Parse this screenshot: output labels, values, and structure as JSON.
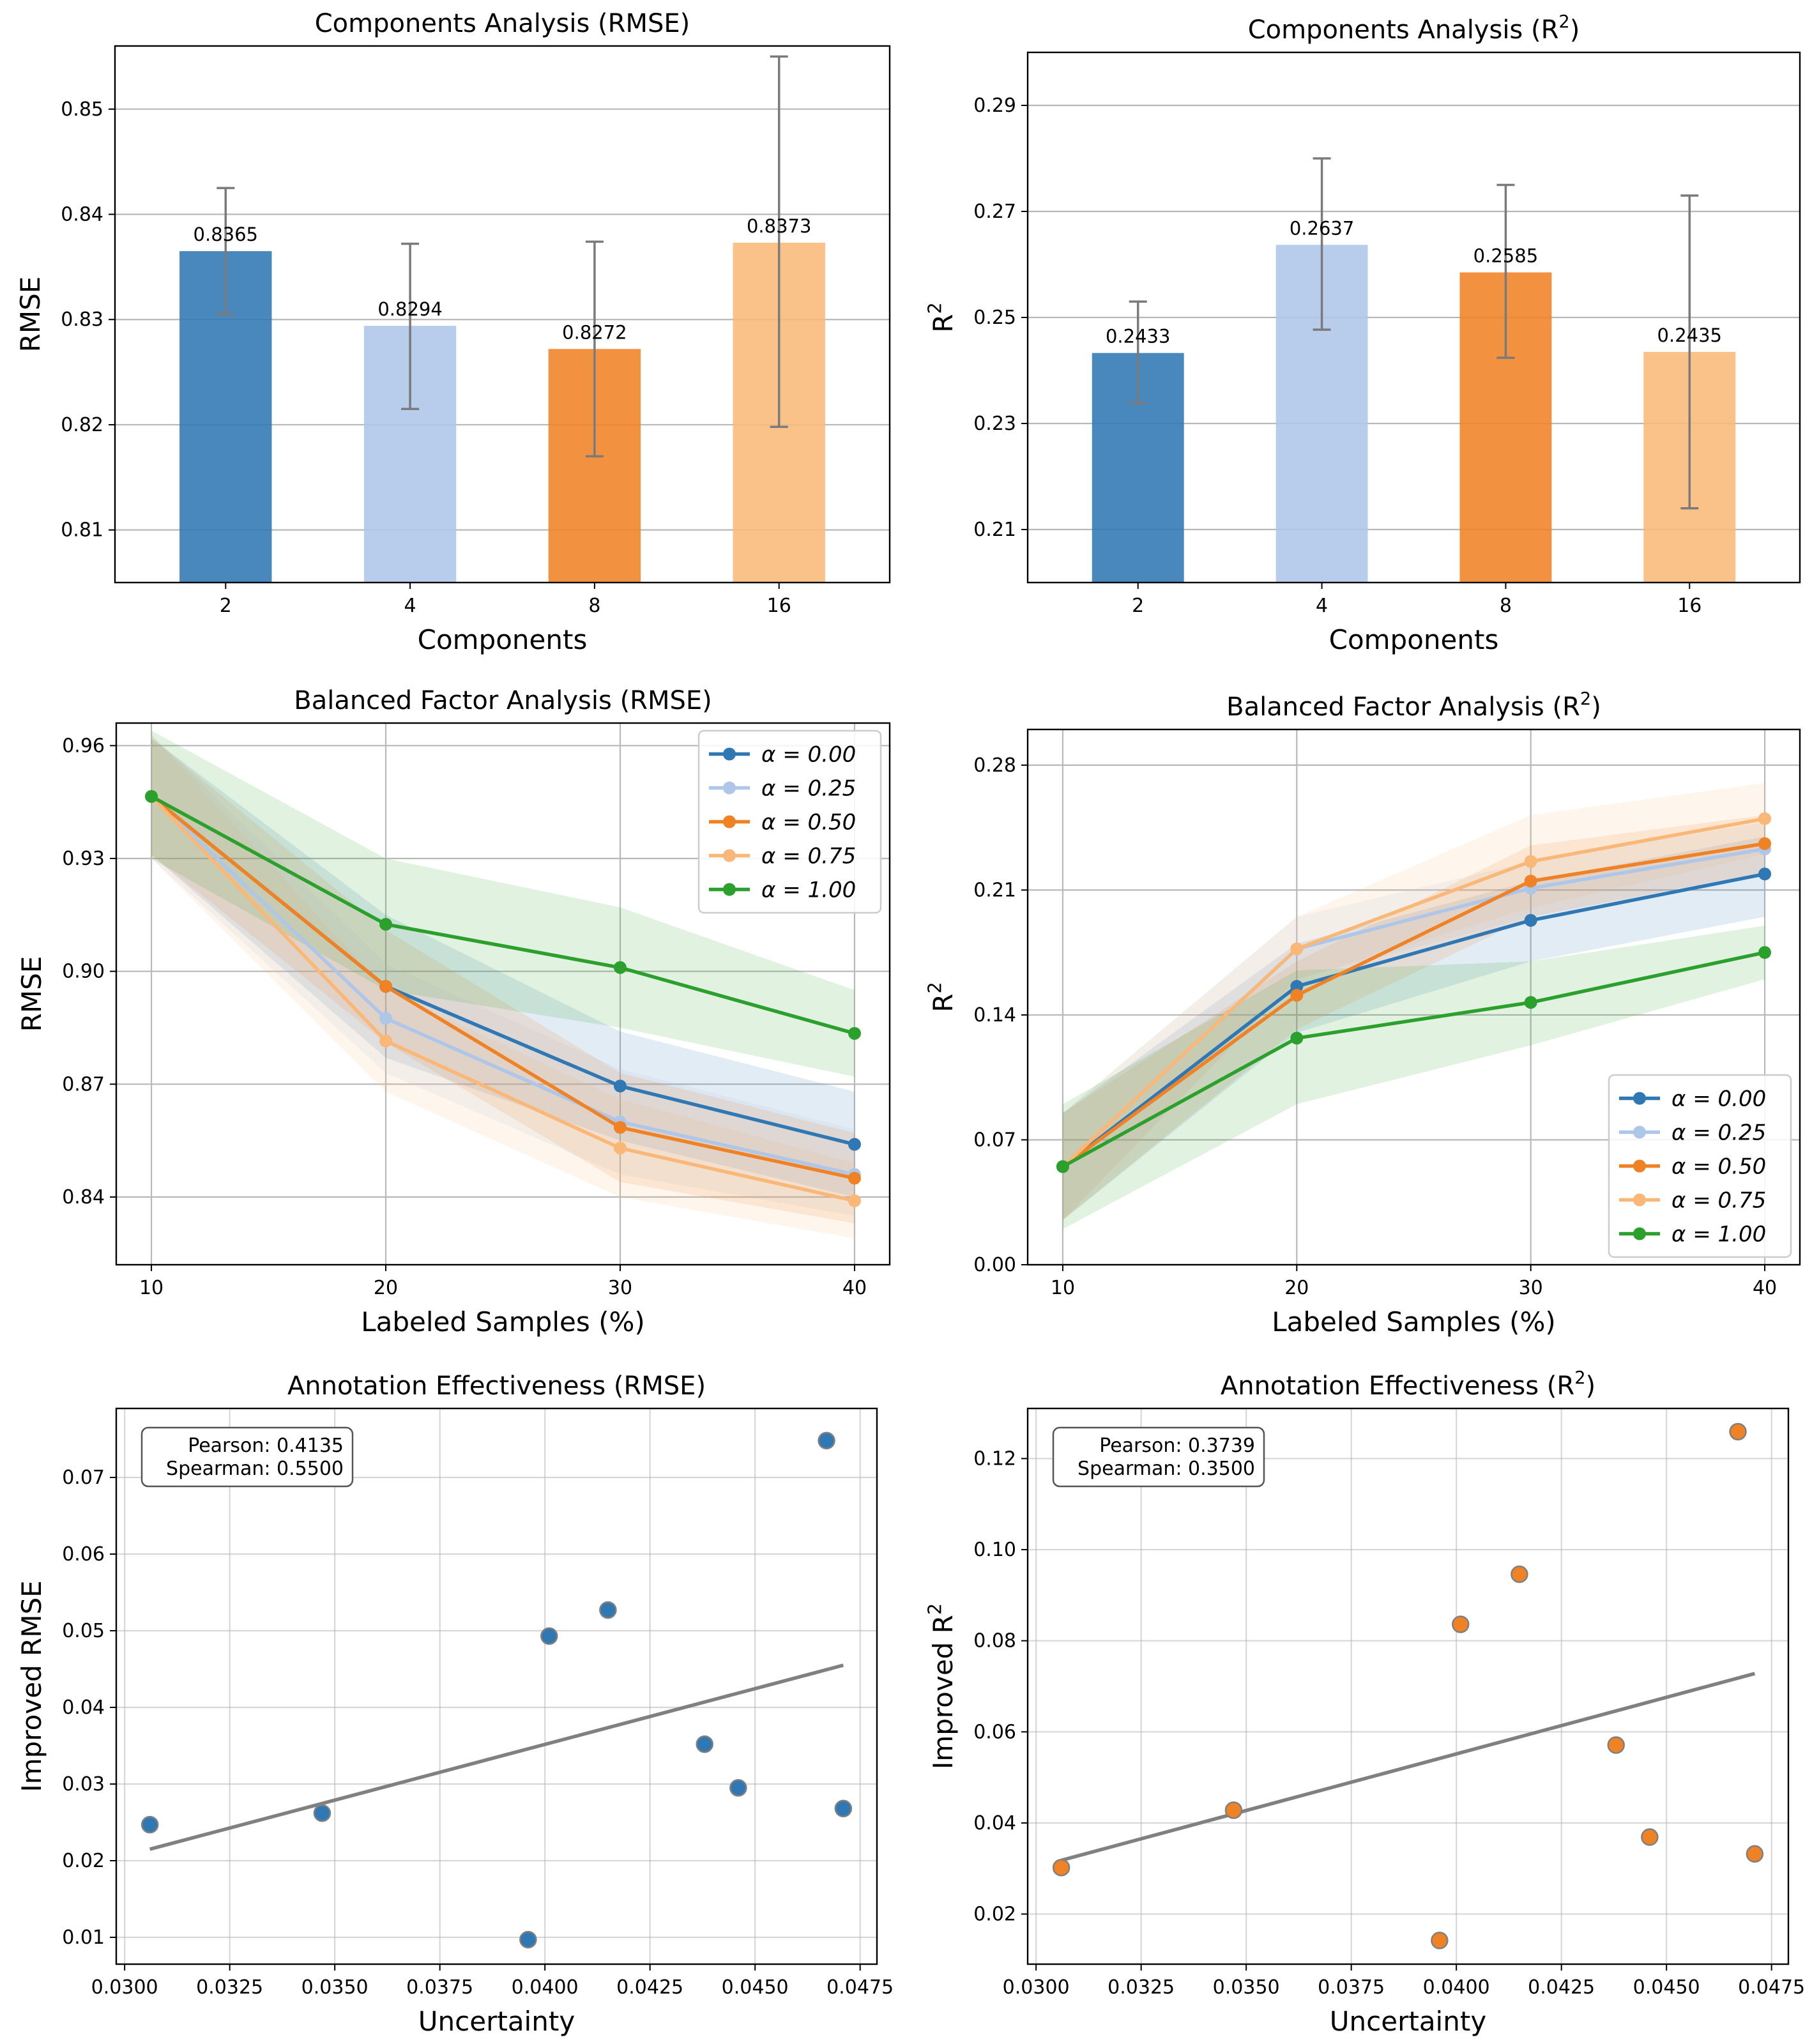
{
  "colors": {
    "blue": "#2f78b4",
    "light_blue": "#aec6e8",
    "orange": "#f08226",
    "light_orange": "#f9b878",
    "green": "#2ca02c",
    "error_bar": "#7a7a7a",
    "trend_line": "#808080",
    "grid": "#b8b8b8"
  },
  "chart_data": [
    {
      "id": "components-rmse",
      "type": "bar",
      "title": "Components Analysis (RMSE)",
      "xlabel": "Components",
      "ylabel": "RMSE",
      "categories": [
        "2",
        "4",
        "8",
        "16"
      ],
      "values": [
        0.8365,
        0.8294,
        0.8272,
        0.8373
      ],
      "value_labels": [
        "0.8365",
        "0.8294",
        "0.8272",
        "0.8373"
      ],
      "error_low": [
        0.8305,
        0.8215,
        0.817,
        0.8198
      ],
      "error_high": [
        0.8425,
        0.8372,
        0.8374,
        0.855
      ],
      "bar_colors": [
        "blue",
        "light_blue",
        "orange",
        "light_orange"
      ],
      "ylim": [
        0.805,
        0.856
      ],
      "yticks": [
        0.81,
        0.82,
        0.83,
        0.84,
        0.85
      ],
      "ytick_labels": [
        "0.81",
        "0.82",
        "0.83",
        "0.84",
        "0.85"
      ],
      "grid": "y"
    },
    {
      "id": "components-r2",
      "type": "bar",
      "title": "Components Analysis (R²)",
      "xlabel": "Components",
      "ylabel": "R²",
      "categories": [
        "2",
        "4",
        "8",
        "16"
      ],
      "values": [
        0.2433,
        0.2637,
        0.2585,
        0.2435
      ],
      "value_labels": [
        "0.2433",
        "0.2637",
        "0.2585",
        "0.2435"
      ],
      "error_low": [
        0.2338,
        0.2477,
        0.2424,
        0.214
      ],
      "error_high": [
        0.253,
        0.28,
        0.275,
        0.273
      ],
      "bar_colors": [
        "blue",
        "light_blue",
        "orange",
        "light_orange"
      ],
      "ylim": [
        0.2,
        0.3
      ],
      "yticks": [
        0.21,
        0.23,
        0.25,
        0.27,
        0.29
      ],
      "ytick_labels": [
        "0.21",
        "0.23",
        "0.25",
        "0.27",
        "0.29"
      ],
      "grid": "y"
    },
    {
      "id": "balanced-rmse",
      "type": "line",
      "title": "Balanced Factor Analysis (RMSE)",
      "xlabel": "Labeled Samples (%)",
      "ylabel": "RMSE",
      "x": [
        10,
        20,
        30,
        40
      ],
      "xticks": [
        10,
        20,
        30,
        40
      ],
      "xlim": [
        8.5,
        41.5
      ],
      "ylim": [
        0.822,
        0.966
      ],
      "yticks": [
        0.84,
        0.87,
        0.9,
        0.93,
        0.96
      ],
      "ytick_labels": [
        "0.84",
        "0.87",
        "0.90",
        "0.93",
        "0.96"
      ],
      "grid": "both",
      "legend_position": "top-right",
      "series": [
        {
          "name": "α = 0.00",
          "color": "blue",
          "values": [
            0.9465,
            0.896,
            0.8695,
            0.854
          ],
          "lower": [
            0.931,
            0.877,
            0.855,
            0.84
          ],
          "upper": [
            0.962,
            0.915,
            0.884,
            0.868
          ]
        },
        {
          "name": "α = 0.25",
          "color": "light_blue",
          "values": [
            0.9465,
            0.8875,
            0.86,
            0.846
          ],
          "lower": [
            0.93,
            0.873,
            0.846,
            0.835
          ],
          "upper": [
            0.963,
            0.902,
            0.874,
            0.858
          ]
        },
        {
          "name": "α = 0.50",
          "color": "orange",
          "values": [
            0.9465,
            0.896,
            0.8585,
            0.845
          ],
          "lower": [
            0.931,
            0.881,
            0.844,
            0.833
          ],
          "upper": [
            0.962,
            0.911,
            0.873,
            0.857
          ]
        },
        {
          "name": "α = 0.75",
          "color": "light_orange",
          "values": [
            0.9465,
            0.8815,
            0.853,
            0.839
          ],
          "lower": [
            0.93,
            0.868,
            0.84,
            0.829
          ],
          "upper": [
            0.963,
            0.895,
            0.866,
            0.849
          ]
        },
        {
          "name": "α = 1.00",
          "color": "green",
          "values": [
            0.9465,
            0.9125,
            0.901,
            0.8835
          ],
          "lower": [
            0.93,
            0.895,
            0.885,
            0.872
          ],
          "upper": [
            0.964,
            0.93,
            0.917,
            0.895
          ]
        }
      ]
    },
    {
      "id": "balanced-r2",
      "type": "line",
      "title": "Balanced Factor Analysis (R²)",
      "xlabel": "Labeled Samples (%)",
      "ylabel": "R²",
      "x": [
        10,
        20,
        30,
        40
      ],
      "xticks": [
        10,
        20,
        30,
        40
      ],
      "xlim": [
        8.5,
        41.5
      ],
      "ylim": [
        0.0,
        0.3
      ],
      "yticks": [
        0.0,
        0.07,
        0.14,
        0.21,
        0.28
      ],
      "ytick_labels": [
        "0.00",
        "0.07",
        "0.14",
        "0.21",
        "0.28"
      ],
      "grid": "both",
      "legend_position": "bottom-right",
      "series": [
        {
          "name": "α = 0.00",
          "color": "blue",
          "values": [
            0.055,
            0.156,
            0.193,
            0.219
          ],
          "lower": [
            0.025,
            0.13,
            0.17,
            0.195
          ],
          "upper": [
            0.085,
            0.18,
            0.215,
            0.24
          ]
        },
        {
          "name": "α = 0.25",
          "color": "light_blue",
          "values": [
            0.055,
            0.177,
            0.211,
            0.233
          ],
          "lower": [
            0.025,
            0.16,
            0.195,
            0.218
          ],
          "upper": [
            0.085,
            0.195,
            0.226,
            0.248
          ]
        },
        {
          "name": "α = 0.50",
          "color": "orange",
          "values": [
            0.055,
            0.151,
            0.215,
            0.236
          ],
          "lower": [
            0.025,
            0.132,
            0.195,
            0.22
          ],
          "upper": [
            0.085,
            0.17,
            0.235,
            0.252
          ]
        },
        {
          "name": "α = 0.75",
          "color": "light_orange",
          "values": [
            0.055,
            0.177,
            0.226,
            0.25
          ],
          "lower": [
            0.025,
            0.16,
            0.2,
            0.23
          ],
          "upper": [
            0.085,
            0.195,
            0.252,
            0.27
          ]
        },
        {
          "name": "α = 1.00",
          "color": "green",
          "values": [
            0.055,
            0.127,
            0.147,
            0.175
          ],
          "lower": [
            0.02,
            0.09,
            0.123,
            0.16
          ],
          "upper": [
            0.09,
            0.165,
            0.17,
            0.19
          ]
        }
      ]
    },
    {
      "id": "annotation-rmse",
      "type": "scatter",
      "title": "Annotation Effectiveness (RMSE)",
      "xlabel": "Uncertainty",
      "ylabel": "Improved RMSE",
      "points": [
        {
          "x": 0.0306,
          "y": 0.0247
        },
        {
          "x": 0.0347,
          "y": 0.0262
        },
        {
          "x": 0.0396,
          "y": 0.0097
        },
        {
          "x": 0.0401,
          "y": 0.0493
        },
        {
          "x": 0.0415,
          "y": 0.0527
        },
        {
          "x": 0.0438,
          "y": 0.0352
        },
        {
          "x": 0.0446,
          "y": 0.0295
        },
        {
          "x": 0.0467,
          "y": 0.0748
        },
        {
          "x": 0.0471,
          "y": 0.0268
        }
      ],
      "point_color": "blue",
      "trend_line": {
        "x": [
          0.0306,
          0.0471
        ],
        "y": [
          0.0215,
          0.0455
        ]
      },
      "xlim": [
        0.0298,
        0.0479
      ],
      "ylim": [
        0.0065,
        0.079
      ],
      "xticks": [
        0.03,
        0.0325,
        0.035,
        0.0375,
        0.04,
        0.0425,
        0.045,
        0.0475
      ],
      "xtick_labels": [
        "0.0300",
        "0.0325",
        "0.0350",
        "0.0375",
        "0.0400",
        "0.0425",
        "0.0450",
        "0.0475"
      ],
      "yticks": [
        0.01,
        0.02,
        0.03,
        0.04,
        0.05,
        0.06,
        0.07
      ],
      "ytick_labels": [
        "0.01",
        "0.02",
        "0.03",
        "0.04",
        "0.05",
        "0.06",
        "0.07"
      ],
      "grid": "both",
      "annotation": [
        "Pearson: 0.4135",
        "Spearman: 0.5500"
      ]
    },
    {
      "id": "annotation-r2",
      "type": "scatter",
      "title": "Annotation Effectiveness (R²)",
      "xlabel": "Uncertainty",
      "ylabel": "Improved R²",
      "points": [
        {
          "x": 0.0306,
          "y": 0.0302
        },
        {
          "x": 0.0347,
          "y": 0.0428
        },
        {
          "x": 0.0396,
          "y": 0.0142
        },
        {
          "x": 0.0401,
          "y": 0.0836
        },
        {
          "x": 0.0415,
          "y": 0.0946
        },
        {
          "x": 0.0438,
          "y": 0.0571
        },
        {
          "x": 0.0446,
          "y": 0.0369
        },
        {
          "x": 0.0467,
          "y": 0.1259
        },
        {
          "x": 0.0471,
          "y": 0.0332
        }
      ],
      "point_color": "orange",
      "trend_line": {
        "x": [
          0.0306,
          0.0471
        ],
        "y": [
          0.0318,
          0.0728
        ]
      },
      "xlim": [
        0.0298,
        0.0479
      ],
      "ylim": [
        0.009,
        0.131
      ],
      "xticks": [
        0.03,
        0.0325,
        0.035,
        0.0375,
        0.04,
        0.0425,
        0.045,
        0.0475
      ],
      "xtick_labels": [
        "0.0300",
        "0.0325",
        "0.0350",
        "0.0375",
        "0.0400",
        "0.0425",
        "0.0450",
        "0.0475"
      ],
      "yticks": [
        0.02,
        0.04,
        0.06,
        0.08,
        0.1,
        0.12
      ],
      "ytick_labels": [
        "0.02",
        "0.04",
        "0.06",
        "0.08",
        "0.10",
        "0.12"
      ],
      "grid": "both",
      "annotation": [
        "Pearson: 0.3739",
        "Spearman: 0.3500"
      ]
    }
  ]
}
